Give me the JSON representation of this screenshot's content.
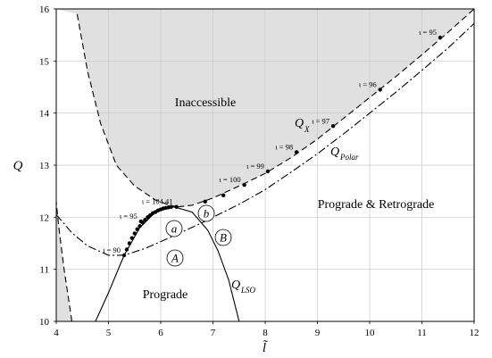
{
  "chart_data": {
    "type": "line",
    "xlabel": "l̃",
    "ylabel": "Q",
    "xlim": [
      4,
      12
    ],
    "ylim": [
      10,
      16
    ],
    "x_ticks": [
      "4",
      "5",
      "6",
      "7",
      "8",
      "9",
      "10",
      "11",
      "12"
    ],
    "y_ticks": [
      "10",
      "11",
      "12",
      "13",
      "14",
      "15",
      "16"
    ],
    "grid": true,
    "colors": {
      "shade": "#e0e0e0",
      "line": "#000000",
      "grid": "#c8c8c8"
    },
    "regions": {
      "inaccessible": "Inaccessible",
      "prograde_retrograde": "Prograde & Retrograde",
      "prograde": "Prograde"
    },
    "curve_labels": {
      "qx_main": "Q",
      "qx_sub": "X",
      "qpolar_main": "Q",
      "qpolar_sub": "Polar",
      "qlso_main": "Q",
      "qlso_sub": "LSO"
    },
    "series": [
      {
        "name": "Q_X",
        "style": "dashed",
        "points": [
          [
            6.33,
            12.2
          ],
          [
            6.6,
            12.23
          ],
          [
            7.0,
            12.37
          ],
          [
            7.5,
            12.6
          ],
          [
            8.0,
            12.84
          ],
          [
            8.5,
            13.15
          ],
          [
            9.0,
            13.5
          ],
          [
            9.5,
            13.9
          ],
          [
            10.0,
            14.3
          ],
          [
            10.5,
            14.7
          ],
          [
            11.0,
            15.12
          ],
          [
            11.5,
            15.55
          ],
          [
            12.0,
            16.0
          ]
        ]
      },
      {
        "name": "Q_Polar",
        "style": "dash-dot",
        "points": [
          [
            4.0,
            12.05
          ],
          [
            4.3,
            11.7
          ],
          [
            4.6,
            11.45
          ],
          [
            5.0,
            11.27
          ],
          [
            5.3,
            11.27
          ],
          [
            5.7,
            11.4
          ],
          [
            6.2,
            11.62
          ],
          [
            6.8,
            11.9
          ],
          [
            7.5,
            12.25
          ],
          [
            8.0,
            12.53
          ],
          [
            8.5,
            12.87
          ],
          [
            9.0,
            13.22
          ],
          [
            9.5,
            13.6
          ],
          [
            10.0,
            14.0
          ],
          [
            10.5,
            14.4
          ],
          [
            11.0,
            14.82
          ],
          [
            11.5,
            15.25
          ],
          [
            12.0,
            15.72
          ]
        ]
      },
      {
        "name": "Q_LSO",
        "style": "solid",
        "points": [
          [
            4.75,
            10.0
          ],
          [
            5.0,
            10.55
          ],
          [
            5.3,
            11.27
          ],
          [
            5.6,
            11.8
          ],
          [
            5.9,
            12.1
          ],
          [
            6.25,
            12.2
          ],
          [
            6.6,
            12.1
          ],
          [
            6.9,
            11.75
          ],
          [
            7.1,
            11.35
          ],
          [
            7.3,
            10.8
          ],
          [
            7.5,
            10.0
          ]
        ]
      },
      {
        "name": "inaccessible-boundary-left",
        "style": "dashed",
        "points": [
          [
            4.4,
            15.9
          ],
          [
            4.6,
            14.8
          ],
          [
            4.85,
            13.8
          ],
          [
            5.15,
            13.0
          ],
          [
            5.5,
            12.6
          ],
          [
            5.9,
            12.33
          ],
          [
            6.2,
            12.22
          ],
          [
            6.33,
            12.2
          ]
        ]
      },
      {
        "name": "inaccessible-boundary-right",
        "style": "dashed",
        "points": [
          [
            4.3,
            10.0
          ],
          [
            4.15,
            11.0
          ],
          [
            4.05,
            11.8
          ],
          [
            4.0,
            12.3
          ]
        ]
      }
    ],
    "markers": [
      {
        "label": "ι = 95",
        "x": 11.35,
        "y": 15.45
      },
      {
        "label": "ι = 96",
        "x": 10.2,
        "y": 14.45
      },
      {
        "label": "ι = 97",
        "x": 9.3,
        "y": 13.75
      },
      {
        "label": "ι = 98",
        "x": 8.6,
        "y": 13.25
      },
      {
        "label": "ι = 99",
        "x": 8.05,
        "y": 12.88
      },
      {
        "label": "ι = 100",
        "x": 7.6,
        "y": 12.62
      },
      {
        "label": "",
        "x": 7.2,
        "y": 12.42
      },
      {
        "label": "",
        "x": 6.85,
        "y": 12.3
      },
      {
        "label": "ι = 104.41",
        "x": 6.3,
        "y": 12.2
      },
      {
        "label": "ι = 95",
        "x": 5.62,
        "y": 11.92
      },
      {
        "label": "ι = 90",
        "x": 5.3,
        "y": 11.27
      }
    ],
    "lso_dots": [
      [
        5.35,
        11.38
      ],
      [
        5.4,
        11.5
      ],
      [
        5.45,
        11.6
      ],
      [
        5.5,
        11.69
      ],
      [
        5.55,
        11.77
      ],
      [
        5.6,
        11.83
      ],
      [
        5.65,
        11.9
      ],
      [
        5.7,
        11.95
      ],
      [
        5.75,
        12.0
      ],
      [
        5.8,
        12.04
      ],
      [
        5.85,
        12.08
      ],
      [
        5.9,
        12.1
      ],
      [
        5.95,
        12.13
      ],
      [
        6.0,
        12.15
      ],
      [
        6.05,
        12.17
      ],
      [
        6.1,
        12.18
      ],
      [
        6.15,
        12.19
      ],
      [
        6.2,
        12.2
      ]
    ],
    "circled_labels": {
      "a": "a",
      "b": "b",
      "A": "A",
      "B": "B"
    }
  }
}
